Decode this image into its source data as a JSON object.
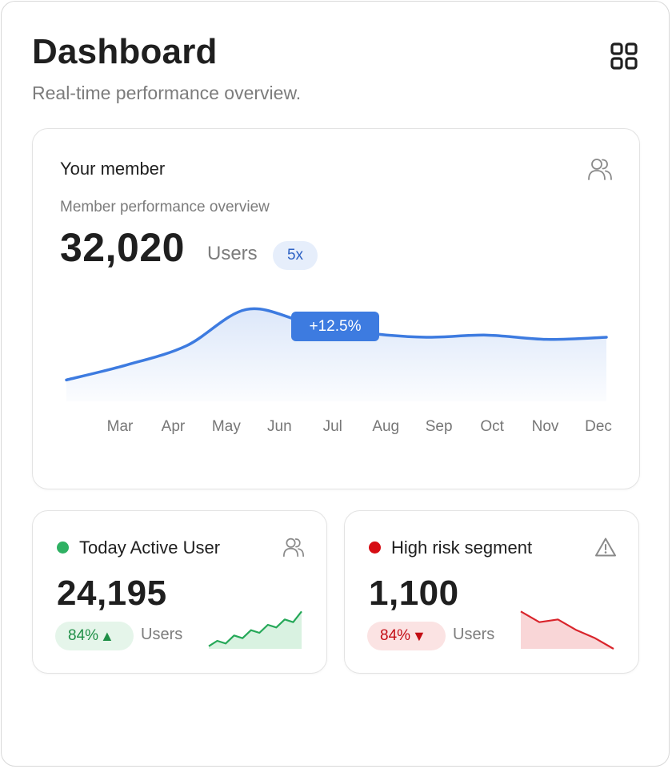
{
  "header": {
    "title": "Dashboard",
    "subtitle": "Real-time performance overview.",
    "grid_icon": "grid-icon"
  },
  "member_card": {
    "title": "Your member",
    "description": "Member performance overview",
    "value": "32,020",
    "unit": "Users",
    "badge": "5x",
    "icon": "users-icon",
    "tooltip": "+12.5%",
    "accent": "#3d7be0",
    "chart_data": {
      "type": "area",
      "x": [
        "Mar",
        "Apr",
        "May",
        "Jun",
        "Jul",
        "Aug",
        "Sep",
        "Oct",
        "Nov",
        "Dec"
      ],
      "tick_labels": [
        "Mar",
        "Apr",
        "May",
        "Jun",
        "Jul",
        "Aug",
        "Sep",
        "Oct",
        "Nov",
        "Dec"
      ],
      "series": [
        {
          "values": [
            10,
            17,
            26,
            43,
            37,
            32,
            30,
            31,
            29,
            30
          ]
        }
      ],
      "ylim": [
        0,
        60
      ],
      "grid": false,
      "legend": "none",
      "annotation": "+12.5%"
    }
  },
  "active_card": {
    "title": "Today Active User",
    "value": "24,195",
    "percent": "84%",
    "direction": "▲",
    "unit": "Users",
    "icon": "users-icon",
    "dot_color": "#2fb163",
    "line_color": "#25a858",
    "fill_color": "#d9f2e1",
    "chart_data": {
      "type": "line",
      "x": [
        1,
        2,
        3,
        4,
        5,
        6,
        7,
        8,
        9,
        10,
        11,
        12
      ],
      "series": [
        {
          "values": [
            1,
            3,
            2,
            5,
            4,
            7,
            6,
            9,
            8,
            11,
            10,
            14
          ]
        }
      ],
      "ylim": [
        0,
        15
      ]
    }
  },
  "risk_card": {
    "title": "High risk segment",
    "value": "1,100",
    "percent": "84%",
    "direction": "▼",
    "unit": "Users",
    "icon": "warning-icon",
    "dot_color": "#d60d14",
    "line_color": "#d9242b",
    "fill_color": "#f9d6d7",
    "chart_data": {
      "type": "line",
      "x": [
        1,
        2,
        3,
        4,
        5,
        6
      ],
      "series": [
        {
          "values": [
            14,
            10,
            11,
            7,
            4,
            0
          ]
        }
      ],
      "ylim": [
        0,
        15
      ]
    }
  }
}
